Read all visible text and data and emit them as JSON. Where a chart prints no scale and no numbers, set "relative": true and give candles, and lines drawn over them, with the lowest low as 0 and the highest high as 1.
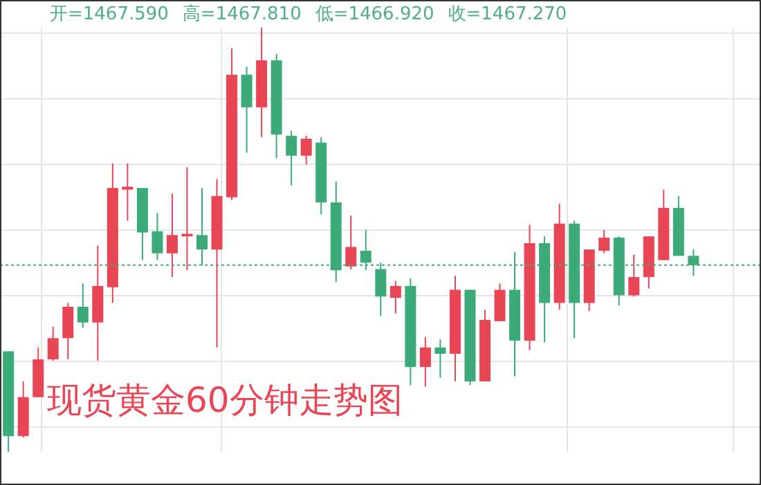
{
  "chart_data": {
    "type": "candlestick",
    "title": "现货黄金60分钟走势图",
    "annotations": [
      "开=1467.590",
      "高=1467.810",
      "低=1466.920",
      "收=1467.270"
    ],
    "relative": true,
    "tick_labels": false,
    "grid": true,
    "legend": false,
    "categories": [
      null,
      null,
      null,
      null,
      null,
      null,
      null,
      null,
      null,
      null,
      null,
      null,
      null,
      null,
      null,
      null,
      null,
      null,
      null,
      null,
      null,
      null,
      null,
      null,
      null,
      null,
      null,
      null,
      null,
      null,
      null,
      null,
      null,
      null,
      null,
      null,
      null,
      null,
      null,
      null,
      null,
      null,
      null,
      null,
      null,
      null,
      null
    ],
    "ohlc": [
      [
        0.237,
        0.237,
        0,
        0.037
      ],
      [
        0.037,
        0.166,
        0.034,
        0.129
      ],
      [
        0.129,
        0.246,
        0.129,
        0.218
      ],
      [
        0.218,
        0.295,
        0.215,
        0.268
      ],
      [
        0.268,
        0.351,
        0.218,
        0.342
      ],
      [
        0.342,
        0.397,
        0.292,
        0.305
      ],
      [
        0.305,
        0.486,
        0.215,
        0.391
      ],
      [
        0.388,
        0.68,
        0.351,
        0.622
      ],
      [
        0.618,
        0.68,
        0.545,
        0.625
      ],
      [
        0.622,
        0.622,
        0.452,
        0.517
      ],
      [
        0.52,
        0.563,
        0.452,
        0.468
      ],
      [
        0.468,
        0.609,
        0.412,
        0.511
      ],
      [
        0.508,
        0.671,
        0.428,
        0.514
      ],
      [
        0.511,
        0.622,
        0.44,
        0.477
      ],
      [
        0.477,
        0.643,
        0.246,
        0.603
      ],
      [
        0.6,
        0.951,
        0.594,
        0.889
      ],
      [
        0.889,
        0.908,
        0.705,
        0.812
      ],
      [
        0.812,
        1,
        0.742,
        0.923
      ],
      [
        0.923,
        0.938,
        0.692,
        0.748
      ],
      [
        0.745,
        0.757,
        0.628,
        0.698
      ],
      [
        0.698,
        0.745,
        0.677,
        0.738
      ],
      [
        0.729,
        0.742,
        0.56,
        0.588
      ],
      [
        0.588,
        0.637,
        0.4,
        0.428
      ],
      [
        0.437,
        0.557,
        0.43,
        0.483
      ],
      [
        0.474,
        0.523,
        0.428,
        0.446
      ],
      [
        0.431,
        0.446,
        0.32,
        0.366
      ],
      [
        0.363,
        0.403,
        0.326,
        0.391
      ],
      [
        0.391,
        0.409,
        0.157,
        0.2
      ],
      [
        0.2,
        0.271,
        0.154,
        0.246
      ],
      [
        0.246,
        0.265,
        0.175,
        0.231
      ],
      [
        0.231,
        0.415,
        0.166,
        0.382
      ],
      [
        0.382,
        0.382,
        0.157,
        0.166
      ],
      [
        0.166,
        0.335,
        0.166,
        0.311
      ],
      [
        0.308,
        0.397,
        0.308,
        0.382
      ],
      [
        0.382,
        0.471,
        0.178,
        0.262
      ],
      [
        0.262,
        0.535,
        0.24,
        0.492
      ],
      [
        0.492,
        0.508,
        0.258,
        0.351
      ],
      [
        0.351,
        0.585,
        0.335,
        0.538
      ],
      [
        0.538,
        0.545,
        0.268,
        0.351
      ],
      [
        0.351,
        0.477,
        0.332,
        0.477
      ],
      [
        0.474,
        0.523,
        0.468,
        0.505
      ],
      [
        0.505,
        0.508,
        0.345,
        0.369
      ],
      [
        0.369,
        0.465,
        0.366,
        0.412
      ],
      [
        0.412,
        0.508,
        0.385,
        0.508
      ],
      [
        0.452,
        0.618,
        0.452,
        0.575
      ],
      [
        0.575,
        0.603,
        0.462,
        0.462
      ],
      [
        0.462,
        0.477,
        0.415,
        0.44
      ]
    ],
    "colors": [
      "#3daa7a",
      "#e84655",
      "#e84655",
      "#e84655",
      "#e84655",
      "#3daa7a",
      "#e84655",
      "#e84655",
      "#e84655",
      "#3daa7a",
      "#3daa7a",
      "#e84655",
      "#e84655",
      "#3daa7a",
      "#e84655",
      "#e84655",
      "#3daa7a",
      "#e84655",
      "#3daa7a",
      "#3daa7a",
      "#e84655",
      "#3daa7a",
      "#3daa7a",
      "#e84655",
      "#3daa7a",
      "#3daa7a",
      "#e84655",
      "#3daa7a",
      "#e84655",
      "#3daa7a",
      "#e84655",
      "#3daa7a",
      "#e84655",
      "#e84655",
      "#3daa7a",
      "#e84655",
      "#3daa7a",
      "#e84655",
      "#3daa7a",
      "#e84655",
      "#e84655",
      "#3daa7a",
      "#e84655",
      "#e84655",
      "#e84655",
      "#3daa7a",
      "#3daa7a"
    ],
    "ref_lines": [
      {
        "axis": "y",
        "value": 0.44,
        "color": "#3daa7a",
        "line_style": "dotted"
      }
    ]
  }
}
